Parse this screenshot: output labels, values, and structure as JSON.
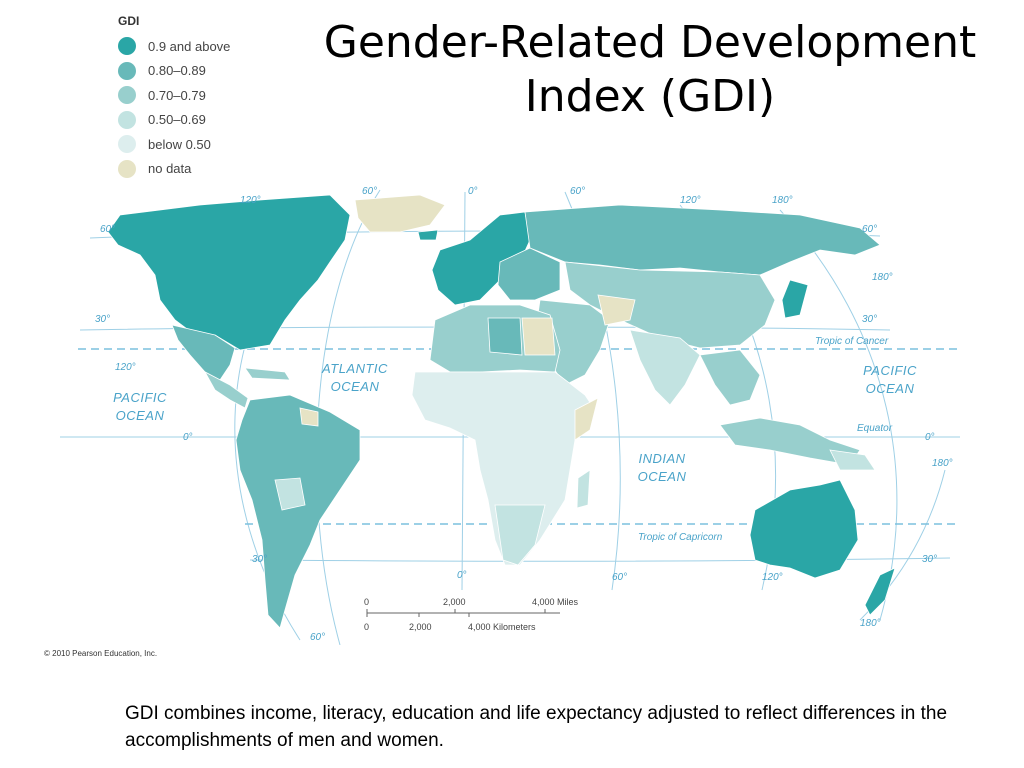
{
  "title": "Gender-Related Development Index (GDI)",
  "legend": {
    "title": "GDI",
    "items": [
      {
        "label": "0.9 and above",
        "color": "#2aa6a6"
      },
      {
        "label": "0.80–0.89",
        "color": "#68b9b9"
      },
      {
        "label": "0.70–0.79",
        "color": "#98cfcd"
      },
      {
        "label": "0.50–0.69",
        "color": "#c2e3e1"
      },
      {
        "label": "below 0.50",
        "color": "#ddeeee"
      },
      {
        "label": "no data",
        "color": "#e6e3c5"
      }
    ]
  },
  "map": {
    "oceans": {
      "atlantic": "ATLANTIC OCEAN",
      "pacific_left": "PACIFIC OCEAN",
      "pacific_right": "PACIFIC OCEAN",
      "indian": "INDIAN OCEAN"
    },
    "line_labels": {
      "tropic_cancer": "Tropic of Cancer",
      "equator": "Equator",
      "tropic_capricorn": "Tropic of Capricorn"
    },
    "degree_labels": {
      "d120w_top": "120°",
      "d60w_top": "60°",
      "d0_top": "0°",
      "d60e_top": "60°",
      "d120e_top": "120°",
      "d180_top": "180°",
      "lat60_left": "60°",
      "lat30_left": "30°",
      "lat120_left": "120°",
      "lat0_left": "0°",
      "lat30s_left": "30°",
      "lat60s_bottom": "60°",
      "lat60_right": "60°",
      "lat180_right": "180°",
      "lat30_right": "30°",
      "lat0_right": "0°",
      "lat180_right2": "180°",
      "lat30s_right": "30°",
      "lat180_bottom": "180°",
      "d0_bottom": "0°",
      "d60_bottom": "60°",
      "d120_bottom": "120°"
    },
    "scale": {
      "miles": [
        "0",
        "2,000",
        "4,000 Miles"
      ],
      "km": [
        "0",
        "2,000",
        "4,000 Kilometers"
      ]
    }
  },
  "copyright": "© 2010 Pearson Education, Inc.",
  "caption": "GDI combines income, literacy, education and life expectancy adjusted to reflect differences in the accomplishments of men and women."
}
